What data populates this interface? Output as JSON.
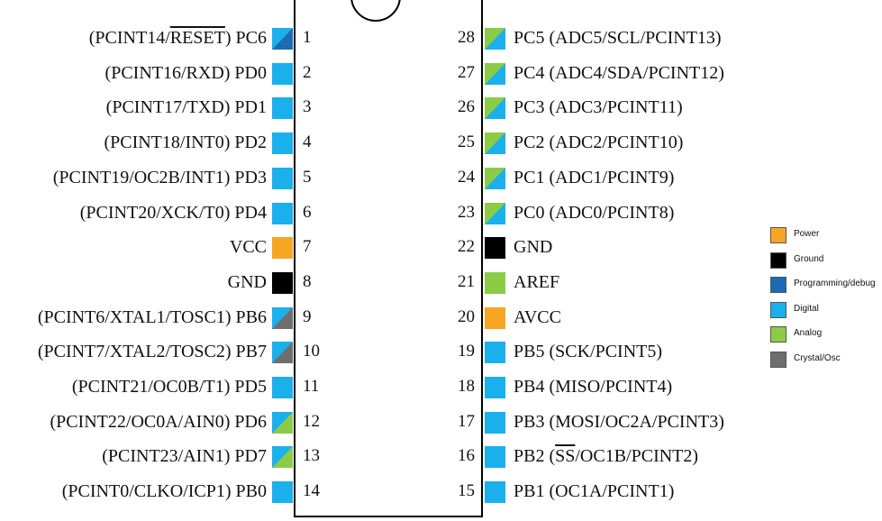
{
  "colors": {
    "power": "#F7A623",
    "ground": "#000000",
    "programming": "#1B6CB5",
    "digital": "#1AB0EC",
    "analog": "#8CCB48",
    "crystal": "#6E6E6E"
  },
  "legend": [
    {
      "key": "power",
      "label": "Power"
    },
    {
      "key": "ground",
      "label": "Ground"
    },
    {
      "key": "programming",
      "label": "Programming/debug"
    },
    {
      "key": "digital",
      "label": "Digital"
    },
    {
      "key": "analog",
      "label": "Analog"
    },
    {
      "key": "crystal",
      "label": "Crystal/Osc"
    }
  ],
  "left_pins": [
    {
      "num": "1",
      "prefix": "(PCINT14/",
      "over": "RESET",
      "suffix": ") PC6",
      "colors": [
        "digital",
        "programming"
      ]
    },
    {
      "num": "2",
      "prefix": "(PCINT16/RXD) PD0",
      "over": "",
      "suffix": "",
      "colors": [
        "digital"
      ]
    },
    {
      "num": "3",
      "prefix": "(PCINT17/TXD) PD1",
      "over": "",
      "suffix": "",
      "colors": [
        "digital"
      ]
    },
    {
      "num": "4",
      "prefix": "(PCINT18/INT0) PD2",
      "over": "",
      "suffix": "",
      "colors": [
        "digital"
      ]
    },
    {
      "num": "5",
      "prefix": "(PCINT19/OC2B/INT1) PD3",
      "over": "",
      "suffix": "",
      "colors": [
        "digital"
      ]
    },
    {
      "num": "6",
      "prefix": "(PCINT20/XCK/T0) PD4",
      "over": "",
      "suffix": "",
      "colors": [
        "digital"
      ]
    },
    {
      "num": "7",
      "prefix": "VCC",
      "over": "",
      "suffix": "",
      "colors": [
        "power"
      ]
    },
    {
      "num": "8",
      "prefix": "GND",
      "over": "",
      "suffix": "",
      "colors": [
        "ground"
      ]
    },
    {
      "num": "9",
      "prefix": "(PCINT6/XTAL1/TOSC1) PB6",
      "over": "",
      "suffix": "",
      "colors": [
        "digital",
        "crystal"
      ]
    },
    {
      "num": "10",
      "prefix": "(PCINT7/XTAL2/TOSC2) PB7",
      "over": "",
      "suffix": "",
      "colors": [
        "digital",
        "crystal"
      ]
    },
    {
      "num": "11",
      "prefix": "(PCINT21/OC0B/T1) PD5",
      "over": "",
      "suffix": "",
      "colors": [
        "digital"
      ]
    },
    {
      "num": "12",
      "prefix": "(PCINT22/OC0A/AIN0) PD6",
      "over": "",
      "suffix": "",
      "colors": [
        "digital",
        "analog"
      ]
    },
    {
      "num": "13",
      "prefix": "(PCINT23/AIN1) PD7",
      "over": "",
      "suffix": "",
      "colors": [
        "digital",
        "analog"
      ]
    },
    {
      "num": "14",
      "prefix": "(PCINT0/CLKO/ICP1) PB0",
      "over": "",
      "suffix": "",
      "colors": [
        "digital"
      ]
    }
  ],
  "right_pins": [
    {
      "num": "28",
      "prefix": "PC5 (ADC5/SCL/PCINT13)",
      "over": "",
      "suffix": "",
      "colors": [
        "digital",
        "analog"
      ]
    },
    {
      "num": "27",
      "prefix": "PC4 (ADC4/SDA/PCINT12)",
      "over": "",
      "suffix": "",
      "colors": [
        "digital",
        "analog"
      ]
    },
    {
      "num": "26",
      "prefix": "PC3 (ADC3/PCINT11)",
      "over": "",
      "suffix": "",
      "colors": [
        "digital",
        "analog"
      ]
    },
    {
      "num": "25",
      "prefix": "PC2 (ADC2/PCINT10)",
      "over": "",
      "suffix": "",
      "colors": [
        "digital",
        "analog"
      ]
    },
    {
      "num": "24",
      "prefix": "PC1 (ADC1/PCINT9)",
      "over": "",
      "suffix": "",
      "colors": [
        "digital",
        "analog"
      ]
    },
    {
      "num": "23",
      "prefix": "PC0 (ADC0/PCINT8)",
      "over": "",
      "suffix": "",
      "colors": [
        "digital",
        "analog"
      ]
    },
    {
      "num": "22",
      "prefix": "GND",
      "over": "",
      "suffix": "",
      "colors": [
        "ground"
      ]
    },
    {
      "num": "21",
      "prefix": "AREF",
      "over": "",
      "suffix": "",
      "colors": [
        "analog"
      ]
    },
    {
      "num": "20",
      "prefix": "AVCC",
      "over": "",
      "suffix": "",
      "colors": [
        "power"
      ]
    },
    {
      "num": "19",
      "prefix": "PB5 (SCK/PCINT5)",
      "over": "",
      "suffix": "",
      "colors": [
        "digital"
      ]
    },
    {
      "num": "18",
      "prefix": "PB4 (MISO/PCINT4)",
      "over": "",
      "suffix": "",
      "colors": [
        "digital"
      ]
    },
    {
      "num": "17",
      "prefix": "PB3 (MOSI/OC2A/PCINT3)",
      "over": "",
      "suffix": "",
      "colors": [
        "digital"
      ]
    },
    {
      "num": "16",
      "prefix": "PB2 (",
      "over": "SS",
      "suffix": "/OC1B/PCINT2)",
      "colors": [
        "digital"
      ]
    },
    {
      "num": "15",
      "prefix": "PB1 (OC1A/PCINT1)",
      "over": "",
      "suffix": "",
      "colors": [
        "digital"
      ]
    }
  ]
}
